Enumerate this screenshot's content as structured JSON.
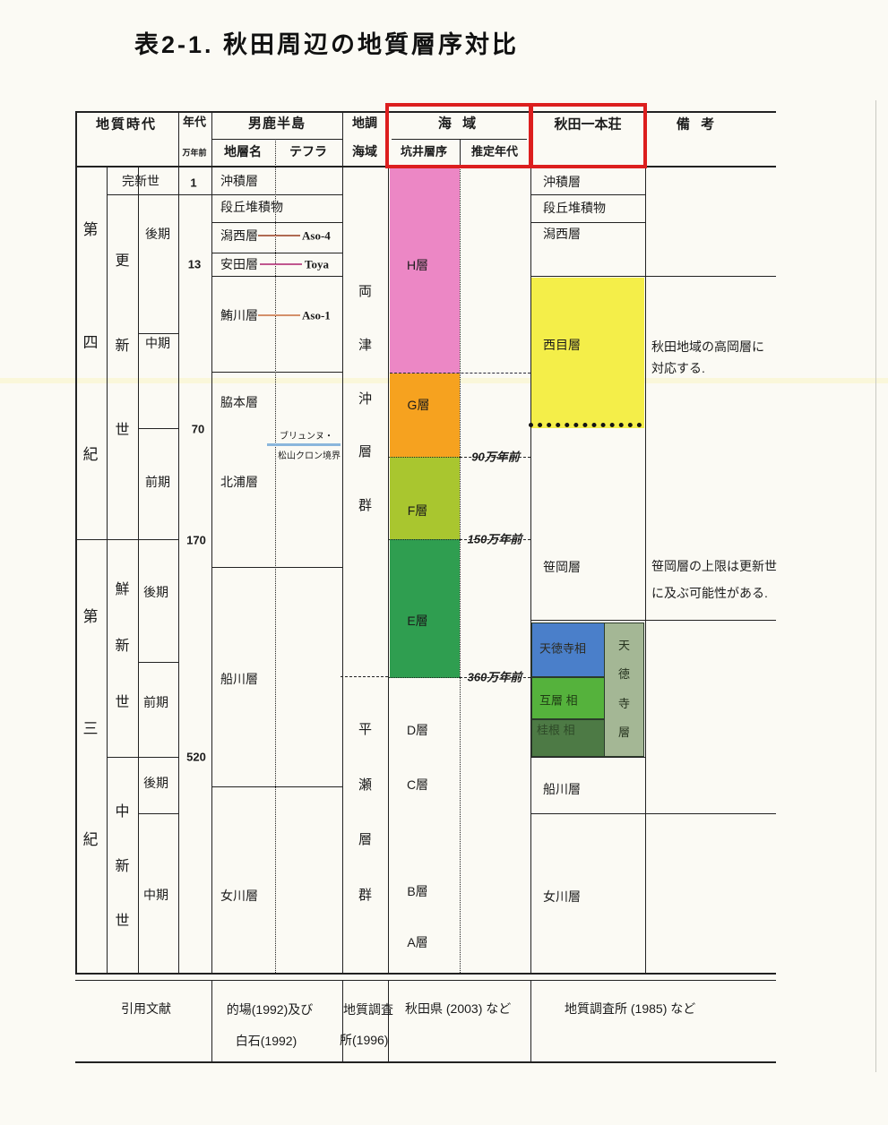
{
  "title": "表2-1. 秋田周辺の地質層序対比",
  "header": {
    "geologic_time": "地質時代",
    "age": "年代",
    "age_unit": "万年前",
    "oga_peninsula": "男鹿半島",
    "formation": "地層名",
    "tephra": "テフラ",
    "survey": "地調",
    "survey2": "海域",
    "sea_area": "海 域",
    "well_sequence": "坑井層序",
    "estimated_age": "推定年代",
    "akita_honjo": "秋田一本荘",
    "remarks": "備 考"
  },
  "era": {
    "quaternary": "第四紀",
    "tertiary": "第三紀",
    "holocene": "完新世",
    "pleistocene": "更新世",
    "pliocene": "鮮新世",
    "miocene": "中新世",
    "pleist_late": "後期",
    "pleist_mid": "中期",
    "pleist_early": "前期",
    "plio_late": "後期",
    "plio_early": "前期",
    "mio_late": "後期",
    "mio_mid": "中期"
  },
  "ages": {
    "a1": "1",
    "a13": "13",
    "a70": "70",
    "a170": "170",
    "a520": "520"
  },
  "oga": {
    "chuseki": "沖積層",
    "dankyu": "段丘堆積物",
    "katanishi": "潟西層",
    "yasuda": "安田層",
    "shibikawa": "鮪川層",
    "wakimoto": "脇本層",
    "kitaura": "北浦層",
    "funakawa": "船川層",
    "onnagawa": "女川層",
    "aso4": "Aso-4",
    "toya": "Toya",
    "aso1": "Aso-1",
    "brunhes1": "ブリュンヌ・",
    "brunhes2": "松山クロン境界"
  },
  "survey_col": {
    "ryotsu_oki": "両津沖層群",
    "hirase": "平瀬層群"
  },
  "sea": {
    "h": "H層",
    "g": "G層",
    "f": "F層",
    "e": "E層",
    "d": "D層",
    "c": "C層",
    "b": "B層",
    "a": "A層",
    "age90": "90万年前",
    "age150": "150万年前",
    "age360": "360万年前"
  },
  "akita": {
    "chuseki": "沖積層",
    "dankyu": "段丘堆積物",
    "katanishi": "潟西層",
    "nishime": "西目層",
    "sasaoka": "笹岡層",
    "tentokuji_facies": "天徳寺相",
    "goso_facies": "互層 相",
    "katsurane_facies": "桂根 相",
    "tentokuji": "天徳寺層",
    "funakawa": "船川層",
    "onnagawa": "女川層"
  },
  "remarks": {
    "nishime1": "秋田地域の高岡層に",
    "nishime2": "対応する.",
    "sasaoka1": "笹岡層の上限は更新世",
    "sasaoka2": "に及ぶ可能性がある."
  },
  "citations": {
    "label": "引用文献",
    "oga1": "的場(1992)及び",
    "oga2": "白石(1992)",
    "survey1": "地質調査",
    "survey2": "所(1996)",
    "sea": "秋田県 (2003) など",
    "akita": "地質調査所 (1985) など"
  },
  "colors": {
    "h_pink": "#ec87c5",
    "g_orange": "#f6a21f",
    "f_yellowgreen": "#a9c62f",
    "e_green": "#2f9e50",
    "nishime_yellow": "#f4ee49",
    "tentokuji_blue": "#4a7fca",
    "goso_green": "#55b23c",
    "katsurane_olive": "#4d7a45",
    "tentokuji_sage": "#a4b795",
    "red_border": "#dc1e1e",
    "tephra_aso4_line": "#b06a52",
    "tephra_toya_line": "#c0568e",
    "tephra_aso1_line": "#d4906a",
    "brunhes_line_blue": "#8ab6dc"
  }
}
